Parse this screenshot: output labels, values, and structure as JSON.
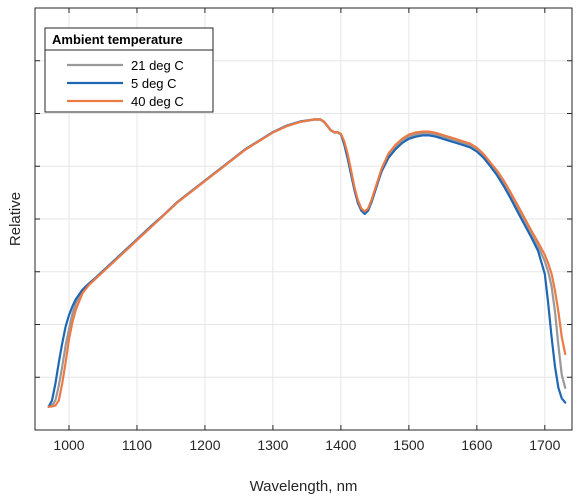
{
  "chart_data": {
    "type": "line",
    "xlabel": "Wavelength, nm",
    "ylabel": "Relative",
    "xlim": [
      950,
      1740
    ],
    "ylim": [
      0,
      1
    ],
    "xticks": [
      1000,
      1100,
      1200,
      1300,
      1400,
      1500,
      1600,
      1700
    ],
    "ytick_count": 8,
    "y_tick_labels_shown": false,
    "grid": true,
    "legend": {
      "title": "Ambient temperature",
      "position": "top-left"
    },
    "series": [
      {
        "name": "21 deg C",
        "color": "#999999",
        "x": [
          970,
          975,
          980,
          985,
          990,
          995,
          1000,
          1005,
          1010,
          1020,
          1030,
          1040,
          1060,
          1080,
          1100,
          1120,
          1140,
          1160,
          1180,
          1200,
          1220,
          1240,
          1260,
          1280,
          1300,
          1320,
          1340,
          1360,
          1370,
          1375,
          1380,
          1385,
          1390,
          1395,
          1400,
          1405,
          1410,
          1415,
          1420,
          1425,
          1430,
          1435,
          1440,
          1445,
          1450,
          1455,
          1460,
          1470,
          1480,
          1490,
          1500,
          1510,
          1520,
          1530,
          1540,
          1550,
          1560,
          1570,
          1580,
          1590,
          1600,
          1610,
          1620,
          1630,
          1640,
          1650,
          1660,
          1670,
          1680,
          1690,
          1700,
          1705,
          1710,
          1715,
          1720,
          1725,
          1730
        ],
        "y": [
          0.056,
          0.058,
          0.07,
          0.105,
          0.15,
          0.2,
          0.24,
          0.275,
          0.3,
          0.33,
          0.345,
          0.36,
          0.39,
          0.42,
          0.45,
          0.48,
          0.51,
          0.54,
          0.565,
          0.59,
          0.615,
          0.64,
          0.665,
          0.685,
          0.705,
          0.72,
          0.73,
          0.735,
          0.735,
          0.73,
          0.72,
          0.71,
          0.705,
          0.705,
          0.7,
          0.68,
          0.65,
          0.61,
          0.57,
          0.54,
          0.52,
          0.513,
          0.52,
          0.54,
          0.565,
          0.59,
          0.615,
          0.65,
          0.67,
          0.685,
          0.695,
          0.7,
          0.703,
          0.703,
          0.7,
          0.695,
          0.69,
          0.685,
          0.68,
          0.675,
          0.665,
          0.65,
          0.63,
          0.61,
          0.585,
          0.555,
          0.525,
          0.495,
          0.465,
          0.435,
          0.4,
          0.375,
          0.34,
          0.28,
          0.2,
          0.13,
          0.1
        ]
      },
      {
        "name": "5 deg C",
        "color": "#1f67b5",
        "x": [
          970,
          975,
          980,
          985,
          990,
          995,
          1000,
          1005,
          1010,
          1020,
          1030,
          1040,
          1060,
          1080,
          1100,
          1120,
          1140,
          1160,
          1180,
          1200,
          1220,
          1240,
          1260,
          1280,
          1300,
          1320,
          1340,
          1360,
          1370,
          1375,
          1380,
          1385,
          1390,
          1395,
          1400,
          1405,
          1410,
          1415,
          1420,
          1425,
          1430,
          1435,
          1440,
          1445,
          1450,
          1455,
          1460,
          1470,
          1480,
          1490,
          1500,
          1510,
          1520,
          1530,
          1540,
          1550,
          1560,
          1570,
          1580,
          1590,
          1600,
          1610,
          1620,
          1630,
          1640,
          1650,
          1660,
          1670,
          1680,
          1690,
          1700,
          1705,
          1710,
          1715,
          1720,
          1725,
          1730
        ],
        "y": [
          0.055,
          0.07,
          0.11,
          0.16,
          0.205,
          0.245,
          0.272,
          0.293,
          0.31,
          0.333,
          0.348,
          0.362,
          0.392,
          0.422,
          0.452,
          0.482,
          0.511,
          0.541,
          0.566,
          0.591,
          0.616,
          0.641,
          0.666,
          0.686,
          0.706,
          0.721,
          0.731,
          0.736,
          0.736,
          0.731,
          0.721,
          0.711,
          0.706,
          0.706,
          0.701,
          0.676,
          0.643,
          0.605,
          0.568,
          0.538,
          0.52,
          0.512,
          0.52,
          0.54,
          0.565,
          0.59,
          0.613,
          0.645,
          0.665,
          0.68,
          0.69,
          0.695,
          0.698,
          0.698,
          0.695,
          0.69,
          0.685,
          0.68,
          0.675,
          0.67,
          0.66,
          0.645,
          0.625,
          0.603,
          0.577,
          0.548,
          0.517,
          0.487,
          0.457,
          0.425,
          0.37,
          0.3,
          0.22,
          0.15,
          0.1,
          0.075,
          0.065
        ]
      },
      {
        "name": "40 deg C",
        "color": "#ec7a45",
        "x": [
          970,
          975,
          980,
          985,
          990,
          995,
          1000,
          1005,
          1010,
          1020,
          1030,
          1040,
          1060,
          1080,
          1100,
          1120,
          1140,
          1160,
          1180,
          1200,
          1220,
          1240,
          1260,
          1280,
          1300,
          1320,
          1340,
          1360,
          1370,
          1375,
          1380,
          1385,
          1390,
          1395,
          1400,
          1405,
          1410,
          1415,
          1420,
          1425,
          1430,
          1435,
          1440,
          1445,
          1450,
          1455,
          1460,
          1470,
          1480,
          1490,
          1500,
          1510,
          1520,
          1530,
          1540,
          1550,
          1560,
          1570,
          1580,
          1590,
          1600,
          1610,
          1620,
          1630,
          1640,
          1650,
          1660,
          1670,
          1680,
          1690,
          1700,
          1705,
          1710,
          1715,
          1720,
          1725,
          1730
        ],
        "y": [
          0.055,
          0.056,
          0.058,
          0.07,
          0.11,
          0.16,
          0.215,
          0.255,
          0.285,
          0.325,
          0.345,
          0.36,
          0.39,
          0.42,
          0.45,
          0.48,
          0.51,
          0.54,
          0.565,
          0.59,
          0.615,
          0.64,
          0.665,
          0.685,
          0.705,
          0.72,
          0.73,
          0.736,
          0.736,
          0.731,
          0.721,
          0.711,
          0.706,
          0.706,
          0.702,
          0.684,
          0.654,
          0.615,
          0.575,
          0.545,
          0.525,
          0.518,
          0.525,
          0.545,
          0.57,
          0.595,
          0.62,
          0.655,
          0.675,
          0.69,
          0.7,
          0.705,
          0.707,
          0.707,
          0.704,
          0.699,
          0.694,
          0.689,
          0.684,
          0.679,
          0.669,
          0.654,
          0.634,
          0.614,
          0.59,
          0.562,
          0.533,
          0.503,
          0.473,
          0.445,
          0.415,
          0.395,
          0.37,
          0.33,
          0.28,
          0.22,
          0.18
        ]
      }
    ]
  }
}
